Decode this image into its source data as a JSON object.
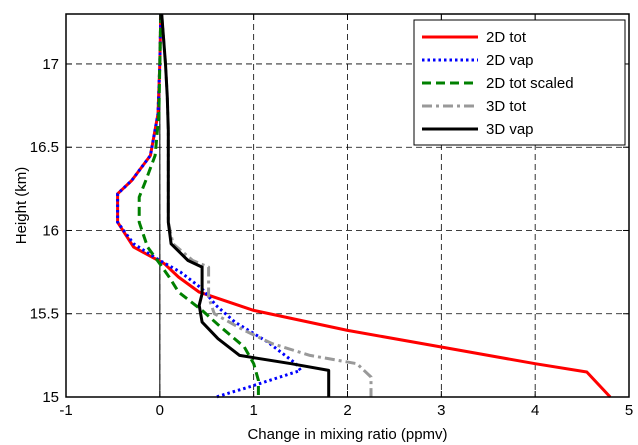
{
  "chart_data": {
    "type": "line",
    "title": "",
    "xlabel": "Change in mixing ratio (ppmv)",
    "ylabel": "Height (km)",
    "xlim": [
      -1,
      5
    ],
    "ylim": [
      15,
      17.3
    ],
    "xticks": [
      -1,
      0,
      1,
      2,
      3,
      4,
      5
    ],
    "yticks": [
      15,
      15.5,
      16,
      16.5,
      17
    ],
    "xtick_labels": [
      "-1",
      "0",
      "1",
      "2",
      "3",
      "4",
      "5"
    ],
    "ytick_labels": [
      "15",
      "15.5",
      "16",
      "16.5",
      "17"
    ],
    "grid": true,
    "legend_position": "top-right",
    "zero_line_x": 0,
    "series": [
      {
        "name": "2D tot",
        "color": "#ff0000",
        "style": "solid",
        "points": [
          [
            0.01,
            17.3
          ],
          [
            0.0,
            17.0
          ],
          [
            -0.02,
            16.7
          ],
          [
            -0.1,
            16.45
          ],
          [
            -0.3,
            16.3
          ],
          [
            -0.45,
            16.22
          ],
          [
            -0.45,
            16.05
          ],
          [
            -0.28,
            15.9
          ],
          [
            0.05,
            15.8
          ],
          [
            0.2,
            15.72
          ],
          [
            0.42,
            15.63
          ],
          [
            1.0,
            15.52
          ],
          [
            2.0,
            15.4
          ],
          [
            3.0,
            15.3
          ],
          [
            4.0,
            15.2
          ],
          [
            4.55,
            15.15
          ],
          [
            4.8,
            15.0
          ]
        ]
      },
      {
        "name": "2D vap",
        "color": "#0000ff",
        "style": "dotted",
        "points": [
          [
            0.01,
            17.3
          ],
          [
            0.0,
            17.0
          ],
          [
            -0.02,
            16.7
          ],
          [
            -0.1,
            16.45
          ],
          [
            -0.3,
            16.3
          ],
          [
            -0.45,
            16.22
          ],
          [
            -0.45,
            16.05
          ],
          [
            -0.28,
            15.92
          ],
          [
            0.0,
            15.82
          ],
          [
            0.22,
            15.75
          ],
          [
            0.45,
            15.65
          ],
          [
            0.6,
            15.55
          ],
          [
            0.8,
            15.45
          ],
          [
            1.15,
            15.33
          ],
          [
            1.45,
            15.2
          ],
          [
            1.5,
            15.16
          ],
          [
            0.95,
            15.06
          ],
          [
            0.6,
            15.0
          ]
        ]
      },
      {
        "name": "2D tot scaled",
        "color": "#008000",
        "style": "dashed",
        "points": [
          [
            0.01,
            17.3
          ],
          [
            0.0,
            17.0
          ],
          [
            -0.01,
            16.7
          ],
          [
            -0.05,
            16.45
          ],
          [
            -0.15,
            16.3
          ],
          [
            -0.22,
            16.2
          ],
          [
            -0.22,
            16.05
          ],
          [
            -0.13,
            15.9
          ],
          [
            0.0,
            15.8
          ],
          [
            0.1,
            15.72
          ],
          [
            0.2,
            15.63
          ],
          [
            0.45,
            15.52
          ],
          [
            0.65,
            15.42
          ],
          [
            0.9,
            15.3
          ],
          [
            1.0,
            15.2
          ],
          [
            1.05,
            15.1
          ],
          [
            1.05,
            15.0
          ]
        ]
      },
      {
        "name": "3D tot",
        "color": "#999999",
        "style": "dashdot",
        "points": [
          [
            0.02,
            17.3
          ],
          [
            0.06,
            17.0
          ],
          [
            0.08,
            16.8
          ],
          [
            0.09,
            16.6
          ],
          [
            0.09,
            16.3
          ],
          [
            0.09,
            16.05
          ],
          [
            0.14,
            15.92
          ],
          [
            0.35,
            15.82
          ],
          [
            0.52,
            15.78
          ],
          [
            0.52,
            15.6
          ],
          [
            0.58,
            15.5
          ],
          [
            0.9,
            15.4
          ],
          [
            1.2,
            15.32
          ],
          [
            1.6,
            15.25
          ],
          [
            2.1,
            15.2
          ],
          [
            2.25,
            15.12
          ],
          [
            2.25,
            15.0
          ]
        ]
      },
      {
        "name": "3D vap",
        "color": "#000000",
        "style": "solid",
        "points": [
          [
            0.02,
            17.3
          ],
          [
            0.06,
            17.0
          ],
          [
            0.08,
            16.8
          ],
          [
            0.09,
            16.6
          ],
          [
            0.09,
            16.3
          ],
          [
            0.09,
            16.05
          ],
          [
            0.12,
            15.92
          ],
          [
            0.3,
            15.82
          ],
          [
            0.45,
            15.78
          ],
          [
            0.45,
            15.62
          ],
          [
            0.42,
            15.55
          ],
          [
            0.45,
            15.45
          ],
          [
            0.62,
            15.35
          ],
          [
            0.85,
            15.25
          ],
          [
            1.4,
            15.2
          ],
          [
            1.8,
            15.16
          ],
          [
            1.8,
            15.0
          ]
        ]
      }
    ]
  }
}
